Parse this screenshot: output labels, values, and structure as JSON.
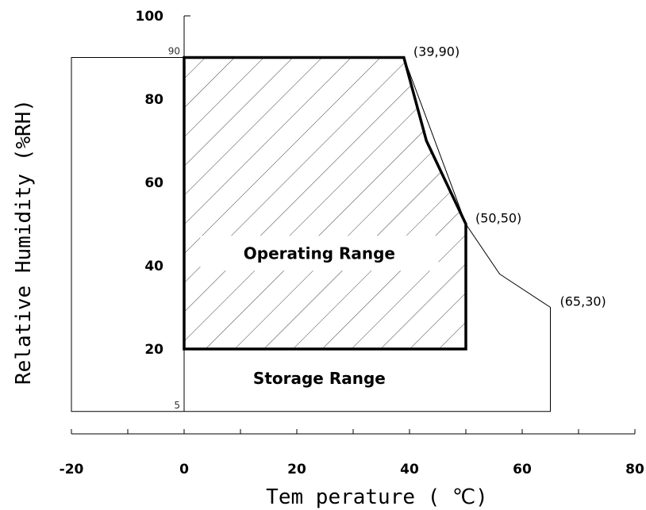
{
  "chart_data": {
    "type": "area",
    "title": "",
    "xlabel": "Tem perature ( ℃)",
    "ylabel": "Relative Humidity (%RH)",
    "xlim": [
      -20,
      80
    ],
    "ylim": [
      0,
      100
    ],
    "x_ticks": [
      -20,
      -10,
      0,
      10,
      20,
      30,
      40,
      50,
      60,
      70,
      80
    ],
    "x_tick_labels": [
      {
        "x": -20,
        "label": "-20"
      },
      {
        "x": 0,
        "label": "0"
      },
      {
        "x": 20,
        "label": "20"
      },
      {
        "x": 40,
        "label": "40"
      },
      {
        "x": 60,
        "label": "60"
      },
      {
        "x": 80,
        "label": "80"
      }
    ],
    "y_tick_labels": [
      {
        "y": 100,
        "label": "100"
      },
      {
        "y": 80,
        "label": "80"
      },
      {
        "y": 60,
        "label": "60"
      },
      {
        "y": 40,
        "label": "40"
      },
      {
        "y": 20,
        "label": "20"
      }
    ],
    "y_small_labels": [
      {
        "y": 90,
        "label": "90"
      },
      {
        "y": 5,
        "label": "5"
      }
    ],
    "regions": [
      {
        "name": "Storage Range",
        "label": "Storage Range",
        "label_at": {
          "x": 24,
          "y": 13
        },
        "boundary": [
          [
            -20,
            5
          ],
          [
            -20,
            90
          ],
          [
            39,
            90
          ],
          [
            50,
            50
          ],
          [
            56,
            38
          ],
          [
            65,
            30
          ],
          [
            65,
            5
          ]
        ]
      },
      {
        "name": "Operating Range",
        "label": "Operating Range",
        "label_at": {
          "x": 24,
          "y": 43
        },
        "hatched": true,
        "boundary": [
          [
            0,
            20
          ],
          [
            0,
            90
          ],
          [
            39,
            90
          ],
          [
            43,
            70
          ],
          [
            50,
            50
          ],
          [
            50,
            20
          ]
        ]
      }
    ],
    "annotations": [
      {
        "x": 39,
        "y": 90,
        "text": "(39,90)"
      },
      {
        "x": 50,
        "y": 50,
        "text": "(50,50)"
      },
      {
        "x": 65,
        "y": 30,
        "text": "(65,30)"
      }
    ]
  }
}
